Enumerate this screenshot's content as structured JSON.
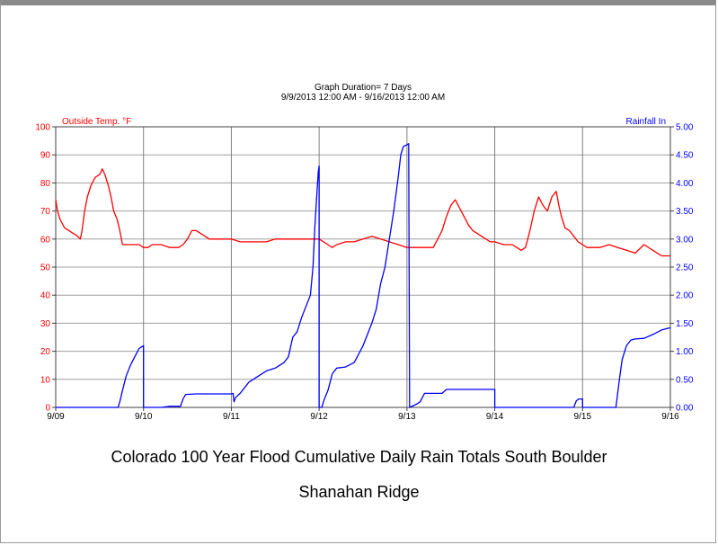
{
  "chart_data": {
    "type": "line",
    "title": "Graph Duration= 7 Days",
    "subtitle": "9/9/2013 12:00 AM - 9/16/2013 12:00 AM",
    "x_labels": [
      "9/09",
      "9/10",
      "9/11",
      "9/12",
      "9/13",
      "9/14",
      "9/15",
      "9/16"
    ],
    "xlim": [
      0,
      7
    ],
    "grid": true,
    "left_axis": {
      "label": "Outside Temp. °F",
      "ylim": [
        0,
        100
      ],
      "ticks": [
        "0",
        "10",
        "20",
        "30",
        "40",
        "50",
        "60",
        "70",
        "80",
        "90",
        "100"
      ],
      "color": "#ff0000"
    },
    "right_axis": {
      "label": "Rainfall In",
      "ylim": [
        0,
        5
      ],
      "ticks": [
        "0.00",
        "0.50",
        "1.00",
        "1.50",
        "2.00",
        "2.50",
        "3.00",
        "3.50",
        "4.00",
        "4.50",
        "5.00"
      ],
      "color": "#0000ff"
    },
    "series": [
      {
        "name": "Outside Temp. °F",
        "axis": "left",
        "color": "#ff0000",
        "points": [
          [
            0.0,
            74
          ],
          [
            0.02,
            70
          ],
          [
            0.05,
            67
          ],
          [
            0.1,
            64
          ],
          [
            0.15,
            63
          ],
          [
            0.2,
            62
          ],
          [
            0.25,
            61
          ],
          [
            0.28,
            60
          ],
          [
            0.3,
            63
          ],
          [
            0.33,
            70
          ],
          [
            0.36,
            75
          ],
          [
            0.4,
            79
          ],
          [
            0.45,
            82
          ],
          [
            0.5,
            83
          ],
          [
            0.53,
            85
          ],
          [
            0.56,
            83
          ],
          [
            0.6,
            79
          ],
          [
            0.63,
            75
          ],
          [
            0.66,
            70
          ],
          [
            0.7,
            67
          ],
          [
            0.73,
            63
          ],
          [
            0.76,
            58
          ],
          [
            0.8,
            58
          ],
          [
            0.9,
            58
          ],
          [
            0.95,
            58
          ],
          [
            1.0,
            57
          ],
          [
            1.05,
            57
          ],
          [
            1.1,
            58
          ],
          [
            1.2,
            58
          ],
          [
            1.3,
            57
          ],
          [
            1.4,
            57
          ],
          [
            1.45,
            58
          ],
          [
            1.5,
            60
          ],
          [
            1.55,
            63
          ],
          [
            1.6,
            63
          ],
          [
            1.65,
            62
          ],
          [
            1.7,
            61
          ],
          [
            1.75,
            60
          ],
          [
            1.85,
            60
          ],
          [
            2.0,
            60
          ],
          [
            2.1,
            59
          ],
          [
            2.2,
            59
          ],
          [
            2.3,
            59
          ],
          [
            2.4,
            59
          ],
          [
            2.5,
            60
          ],
          [
            2.6,
            60
          ],
          [
            2.8,
            60
          ],
          [
            3.0,
            60
          ],
          [
            3.05,
            59
          ],
          [
            3.1,
            58
          ],
          [
            3.15,
            57
          ],
          [
            3.2,
            58
          ],
          [
            3.3,
            59
          ],
          [
            3.4,
            59
          ],
          [
            3.5,
            60
          ],
          [
            3.6,
            61
          ],
          [
            3.7,
            60
          ],
          [
            3.8,
            59
          ],
          [
            3.9,
            58
          ],
          [
            4.0,
            57
          ],
          [
            4.1,
            57
          ],
          [
            4.2,
            57
          ],
          [
            4.3,
            57
          ],
          [
            4.35,
            60
          ],
          [
            4.4,
            63
          ],
          [
            4.45,
            68
          ],
          [
            4.5,
            72
          ],
          [
            4.55,
            74
          ],
          [
            4.6,
            71
          ],
          [
            4.65,
            68
          ],
          [
            4.7,
            65
          ],
          [
            4.75,
            63
          ],
          [
            4.8,
            62
          ],
          [
            4.85,
            61
          ],
          [
            4.9,
            60
          ],
          [
            4.95,
            59
          ],
          [
            5.0,
            59
          ],
          [
            5.1,
            58
          ],
          [
            5.2,
            58
          ],
          [
            5.25,
            57
          ],
          [
            5.3,
            56
          ],
          [
            5.35,
            57
          ],
          [
            5.4,
            63
          ],
          [
            5.45,
            70
          ],
          [
            5.5,
            75
          ],
          [
            5.55,
            72
          ],
          [
            5.6,
            70
          ],
          [
            5.65,
            75
          ],
          [
            5.7,
            77
          ],
          [
            5.73,
            72
          ],
          [
            5.76,
            68
          ],
          [
            5.8,
            64
          ],
          [
            5.85,
            63
          ],
          [
            5.9,
            61
          ],
          [
            5.95,
            59
          ],
          [
            6.0,
            58
          ],
          [
            6.05,
            57
          ],
          [
            6.1,
            57
          ],
          [
            6.2,
            57
          ],
          [
            6.3,
            58
          ],
          [
            6.4,
            57
          ],
          [
            6.5,
            56
          ],
          [
            6.6,
            55
          ],
          [
            6.7,
            58
          ],
          [
            6.8,
            56
          ],
          [
            6.85,
            55
          ],
          [
            6.9,
            54
          ],
          [
            7.0,
            54
          ]
        ]
      },
      {
        "name": "Rainfall In",
        "axis": "right",
        "color": "#0000ff",
        "points": [
          [
            0.0,
            0.0
          ],
          [
            0.71,
            0.0
          ],
          [
            0.73,
            0.1
          ],
          [
            0.76,
            0.3
          ],
          [
            0.8,
            0.55
          ],
          [
            0.85,
            0.75
          ],
          [
            0.9,
            0.9
          ],
          [
            0.95,
            1.05
          ],
          [
            0.98,
            1.08
          ],
          [
            1.0,
            1.1
          ],
          [
            1.0,
            0.0
          ],
          [
            1.1,
            0.0
          ],
          [
            1.2,
            0.0
          ],
          [
            1.3,
            0.02
          ],
          [
            1.42,
            0.02
          ],
          [
            1.45,
            0.15
          ],
          [
            1.48,
            0.23
          ],
          [
            1.6,
            0.24
          ],
          [
            1.8,
            0.24
          ],
          [
            2.0,
            0.24
          ],
          [
            2.02,
            0.25
          ],
          [
            2.03,
            0.1
          ],
          [
            2.05,
            0.18
          ],
          [
            2.1,
            0.25
          ],
          [
            2.15,
            0.35
          ],
          [
            2.2,
            0.45
          ],
          [
            2.3,
            0.55
          ],
          [
            2.4,
            0.65
          ],
          [
            2.5,
            0.7
          ],
          [
            2.6,
            0.8
          ],
          [
            2.65,
            0.9
          ],
          [
            2.7,
            1.25
          ],
          [
            2.75,
            1.35
          ],
          [
            2.8,
            1.6
          ],
          [
            2.85,
            1.8
          ],
          [
            2.9,
            2.0
          ],
          [
            2.93,
            2.5
          ],
          [
            2.95,
            3.2
          ],
          [
            2.97,
            3.7
          ],
          [
            2.99,
            4.2
          ],
          [
            3.0,
            4.3
          ],
          [
            3.0,
            0.0
          ],
          [
            3.03,
            0.0
          ],
          [
            3.06,
            0.15
          ],
          [
            3.1,
            0.3
          ],
          [
            3.15,
            0.6
          ],
          [
            3.2,
            0.7
          ],
          [
            3.3,
            0.72
          ],
          [
            3.4,
            0.8
          ],
          [
            3.5,
            1.1
          ],
          [
            3.55,
            1.3
          ],
          [
            3.6,
            1.5
          ],
          [
            3.65,
            1.75
          ],
          [
            3.7,
            2.2
          ],
          [
            3.75,
            2.5
          ],
          [
            3.8,
            3.0
          ],
          [
            3.85,
            3.5
          ],
          [
            3.9,
            4.1
          ],
          [
            3.93,
            4.5
          ],
          [
            3.96,
            4.65
          ],
          [
            4.0,
            4.68
          ],
          [
            4.02,
            4.7
          ],
          [
            4.03,
            0.0
          ],
          [
            4.1,
            0.05
          ],
          [
            4.15,
            0.1
          ],
          [
            4.2,
            0.25
          ],
          [
            4.4,
            0.25
          ],
          [
            4.45,
            0.32
          ],
          [
            4.6,
            0.32
          ],
          [
            5.0,
            0.32
          ],
          [
            5.0,
            0.0
          ],
          [
            5.5,
            0.0
          ],
          [
            5.9,
            0.0
          ],
          [
            5.93,
            0.12
          ],
          [
            5.96,
            0.15
          ],
          [
            6.0,
            0.15
          ],
          [
            6.0,
            0.0
          ],
          [
            6.38,
            0.0
          ],
          [
            6.42,
            0.5
          ],
          [
            6.45,
            0.85
          ],
          [
            6.5,
            1.1
          ],
          [
            6.55,
            1.2
          ],
          [
            6.6,
            1.22
          ],
          [
            6.7,
            1.23
          ],
          [
            6.8,
            1.3
          ],
          [
            6.9,
            1.38
          ],
          [
            7.0,
            1.42
          ]
        ]
      }
    ]
  },
  "captions": {
    "line1": "Colorado 100 Year Flood Cumulative Daily Rain Totals South Boulder",
    "line2": "Shanahan Ridge"
  }
}
